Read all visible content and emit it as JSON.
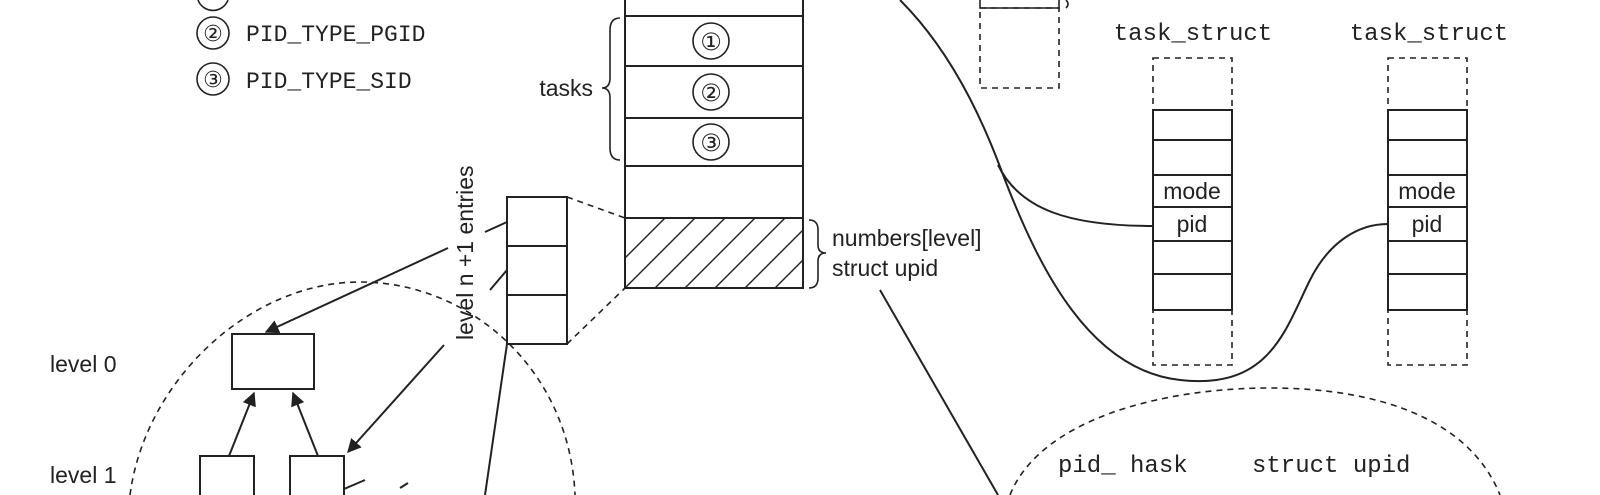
{
  "legend": {
    "items": [
      {
        "num": "②",
        "label": "PID_TYPE_PGID"
      },
      {
        "num": "③",
        "label": "PID_TYPE_SID"
      }
    ]
  },
  "pid_struct": {
    "tasks_label": "tasks",
    "task_slots": [
      "①",
      "②",
      "③"
    ],
    "numbers_label": "numbers[level]",
    "upid_label": "struct upid"
  },
  "levels": {
    "entries_label": "level n +1 entries",
    "level0_label": "level 0",
    "level1_label": "level 1"
  },
  "task_structs": [
    {
      "title": "task_struct",
      "mode_label": "mode",
      "pid_label": "pid"
    },
    {
      "title": "task_struct",
      "mode_label": "mode",
      "pid_label": "pid"
    }
  ],
  "bottom_cloud": {
    "pid_hash_label": "pid_ hask",
    "upid_label": "struct upid"
  }
}
